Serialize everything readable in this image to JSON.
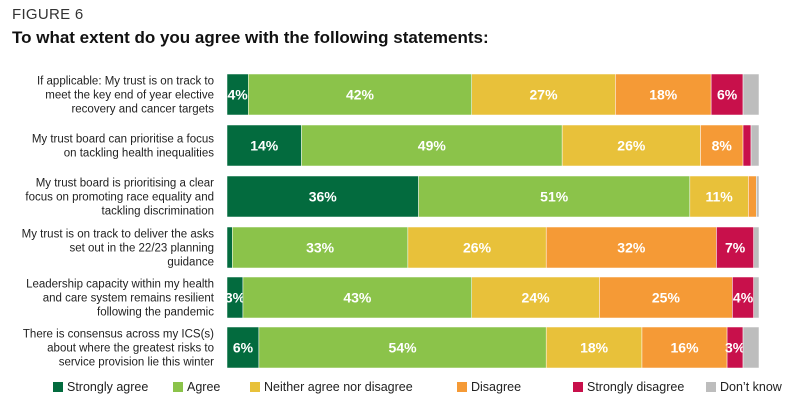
{
  "header": {
    "figure_label": "FIGURE 6",
    "title": "To what extent do you agree with the following statements:"
  },
  "colors": {
    "Strongly agree": "#036b3e",
    "Agree": "#8bc34a",
    "Neither agree nor disagree": "#e8c13a",
    "Disagree": "#f59a36",
    "Strongly disagree": "#c8104b",
    "Don't know": "#bdbdbd"
  },
  "chart_data": {
    "type": "bar",
    "orientation": "horizontal",
    "stacked": true,
    "percent": true,
    "categories": [
      [
        "If applicable: My trust is on track to",
        "meet the key end of year elective",
        "recovery and cancer targets"
      ],
      [
        "My trust board can prioritise a focus",
        "on tackling health inequalities"
      ],
      [
        "My trust board is prioritising a clear",
        "focus on promoting race equality and",
        "tackling discrimination"
      ],
      [
        "My trust is on track to deliver the asks",
        "set out in the 22/23 planning",
        "guidance"
      ],
      [
        "Leadership capacity within my health",
        "and care system remains resilient",
        "following the pandemic"
      ],
      [
        "There is consensus across my ICS(s)",
        "about where the greatest risks to",
        "service provision lie this winter"
      ]
    ],
    "series": [
      {
        "name": "Strongly agree",
        "values": [
          4,
          14,
          36,
          1,
          3,
          6
        ],
        "labels": [
          "4%",
          "14%",
          "36%",
          "",
          "3%",
          "6%"
        ]
      },
      {
        "name": "Agree",
        "values": [
          42,
          49,
          51,
          33,
          43,
          54
        ],
        "labels": [
          "42%",
          "49%",
          "51%",
          "33%",
          "43%",
          "54%"
        ]
      },
      {
        "name": "Neither agree nor disagree",
        "values": [
          27,
          26,
          11,
          26,
          24,
          18
        ],
        "labels": [
          "27%",
          "26%",
          "11%",
          "26%",
          "24%",
          "18%"
        ]
      },
      {
        "name": "Disagree",
        "values": [
          18,
          8,
          1.5,
          32,
          25,
          16
        ],
        "labels": [
          "18%",
          "8%",
          "",
          "32%",
          "25%",
          "16%"
        ]
      },
      {
        "name": "Strongly disagree",
        "values": [
          6,
          1.5,
          0,
          7,
          4,
          3
        ],
        "labels": [
          "6%",
          "",
          "",
          "7%",
          "4%",
          "3%"
        ]
      },
      {
        "name": "Don't know",
        "values": [
          3,
          1.5,
          0.5,
          1,
          1,
          3
        ],
        "labels": [
          "",
          "",
          "",
          "",
          "",
          ""
        ]
      }
    ],
    "legend": [
      "Strongly agree",
      "Agree",
      "Neither agree nor disagree",
      "Disagree",
      "Strongly disagree",
      "Don’t know"
    ],
    "legend_position": "bottom"
  }
}
